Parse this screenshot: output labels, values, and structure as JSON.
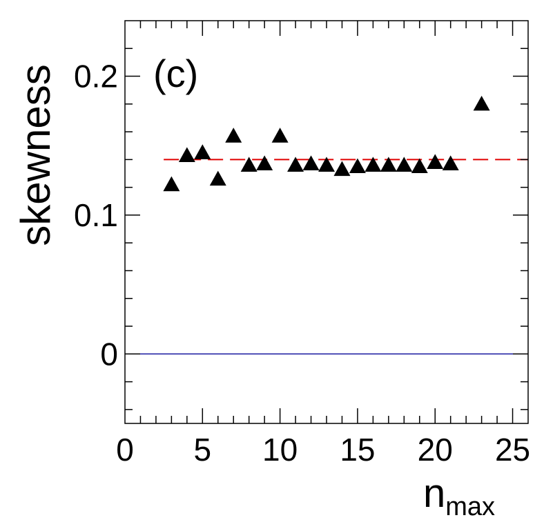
{
  "chart_data": {
    "type": "scatter",
    "title": "",
    "panel_label": "(c)",
    "xlabel": {
      "main": "n",
      "subscript": "max"
    },
    "ylabel": "skewness",
    "xlim": [
      0,
      26
    ],
    "ylim": [
      -0.05,
      0.24
    ],
    "x_major_ticks": [
      0,
      5,
      10,
      15,
      20,
      25
    ],
    "x_tick_labels": [
      "0",
      "5",
      "10",
      "15",
      "20",
      "25"
    ],
    "y_major_ticks": [
      0,
      0.1,
      0.2
    ],
    "y_tick_labels": [
      "0",
      "0.1",
      "0.2"
    ],
    "grid": false,
    "series": [
      {
        "name": "skewness",
        "marker": "triangle-up",
        "color": "#000000",
        "x": [
          3,
          4,
          5,
          6,
          7,
          8,
          9,
          10,
          11,
          12,
          13,
          14,
          15,
          16,
          17,
          18,
          19,
          20,
          21,
          23
        ],
        "y": [
          0.122,
          0.143,
          0.145,
          0.126,
          0.157,
          0.136,
          0.137,
          0.157,
          0.136,
          0.137,
          0.136,
          0.133,
          0.135,
          0.136,
          0.136,
          0.136,
          0.135,
          0.138,
          0.137,
          0.18
        ]
      }
    ],
    "reference_lines": [
      {
        "name": "mean-line",
        "y": 0.14,
        "x_range": [
          2.5,
          26
        ],
        "style": "dashed",
        "color": "#e00000"
      },
      {
        "name": "zero-line",
        "y": 0,
        "x_range": [
          0,
          26
        ],
        "style": "solid",
        "color": "#1a1aa0"
      }
    ]
  }
}
